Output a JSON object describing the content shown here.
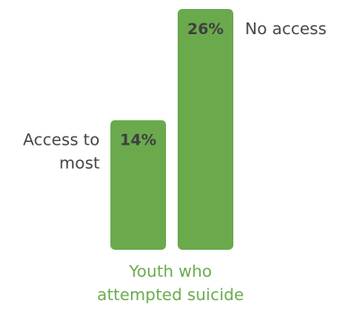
{
  "chart_data": {
    "type": "bar",
    "categories": [
      "Access to most",
      "No access"
    ],
    "values": [
      14,
      26
    ],
    "value_labels": [
      "14%",
      "26%"
    ],
    "category_label_lines": [
      [
        "Access to",
        "most"
      ],
      [
        "No access"
      ]
    ],
    "xlabel_lines": [
      "Youth who",
      "attempted suicide"
    ],
    "ylim": [
      0,
      26
    ],
    "grid": false,
    "legend": "none",
    "colors": {
      "bar": "#6aaa4d",
      "value_text": "#3f3f3f",
      "category_text": "#444444",
      "xlabel_text": "#6aaa4d"
    }
  }
}
